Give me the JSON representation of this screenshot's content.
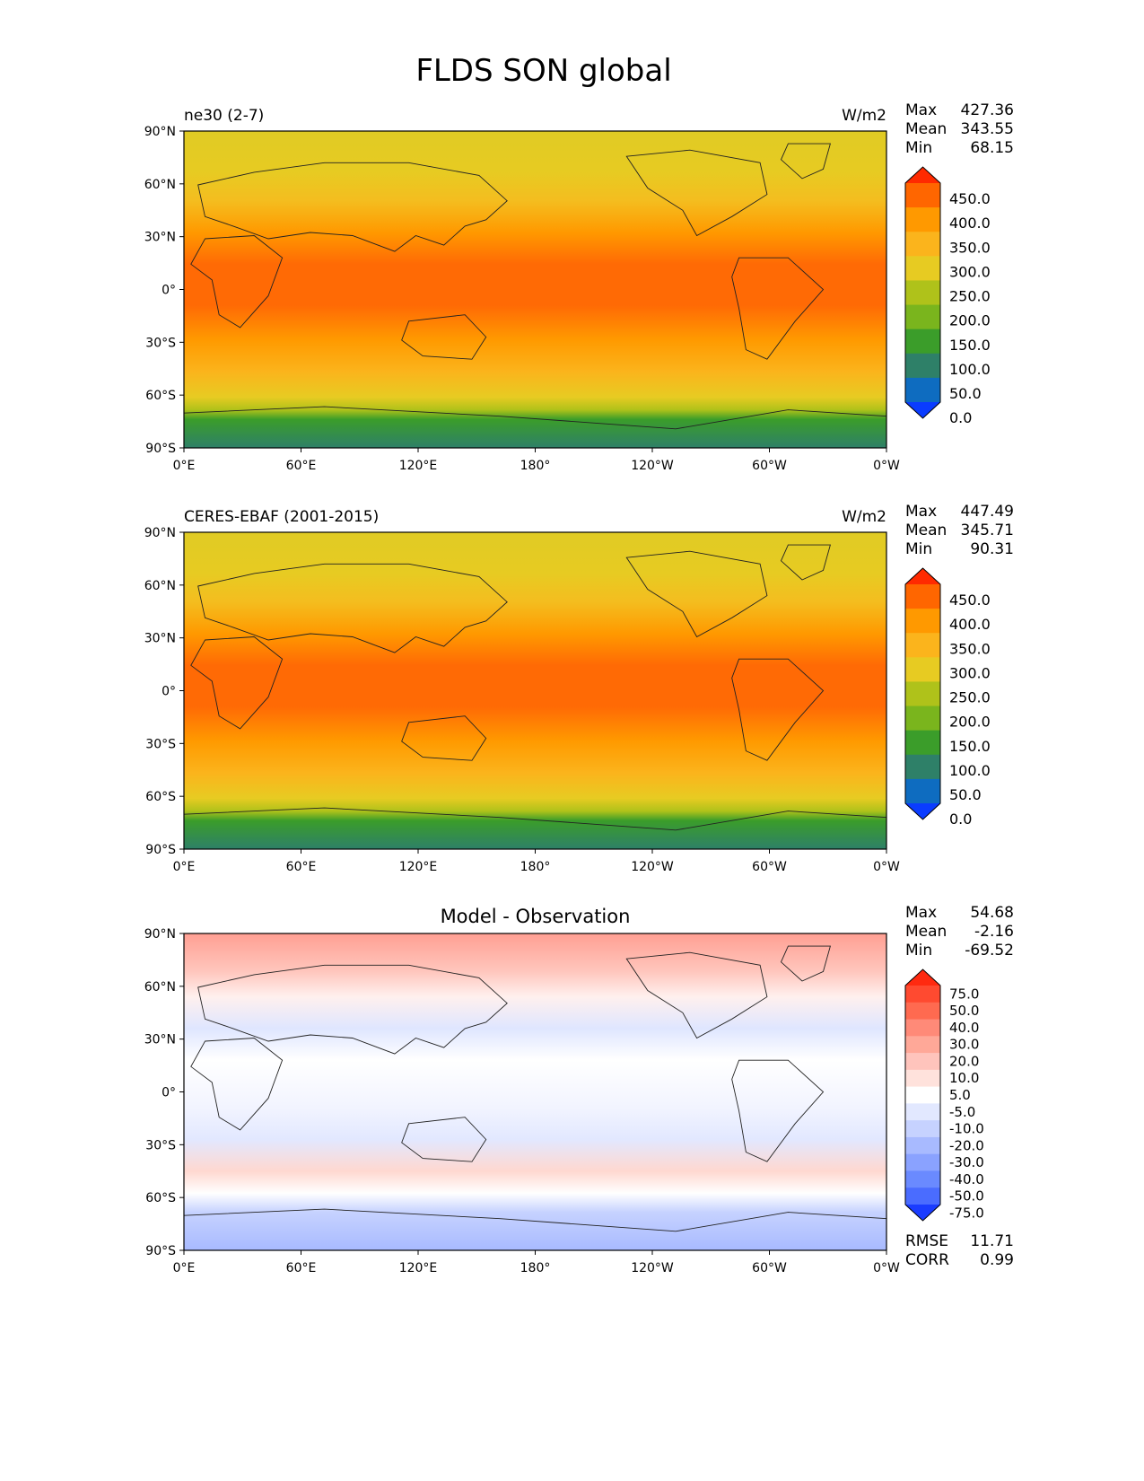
{
  "figure_title": "FLDS SON global",
  "x_ticks": [
    "0°E",
    "60°E",
    "120°E",
    "180°",
    "120°W",
    "60°W",
    "0°W"
  ],
  "y_ticks": [
    "90°N",
    "60°N",
    "30°N",
    "0°",
    "30°S",
    "60°S",
    "90°S"
  ],
  "panels": [
    {
      "id": "model",
      "left_title": "ne30 (2-7)",
      "center_title": "",
      "units": "W/m2",
      "stats": [
        {
          "label": "Max",
          "value": "427.36"
        },
        {
          "label": "Mean",
          "value": "343.55"
        },
        {
          "label": "Min",
          "value": "68.15"
        }
      ],
      "colorbar": {
        "levels": [
          "450.0",
          "400.0",
          "350.0",
          "300.0",
          "250.0",
          "200.0",
          "150.0",
          "100.0",
          "50.0",
          "0.0"
        ],
        "colors": [
          "#ff2a00",
          "#ff6600",
          "#ff9900",
          "#fbb41c",
          "#e7cb22",
          "#afc21a",
          "#7ab51d",
          "#3b9d2a",
          "#2e8068",
          "#0e6cc0",
          "#0a3cff"
        ]
      },
      "footer_stats": []
    },
    {
      "id": "obs",
      "left_title": "CERES-EBAF (2001-2015)",
      "center_title": "",
      "units": "W/m2",
      "stats": [
        {
          "label": "Max",
          "value": "447.49"
        },
        {
          "label": "Mean",
          "value": "345.71"
        },
        {
          "label": "Min",
          "value": "90.31"
        }
      ],
      "colorbar": {
        "levels": [
          "450.0",
          "400.0",
          "350.0",
          "300.0",
          "250.0",
          "200.0",
          "150.0",
          "100.0",
          "50.0",
          "0.0"
        ],
        "colors": [
          "#ff2a00",
          "#ff6600",
          "#ff9900",
          "#fbb41c",
          "#e7cb22",
          "#afc21a",
          "#7ab51d",
          "#3b9d2a",
          "#2e8068",
          "#0e6cc0",
          "#0a3cff"
        ]
      },
      "footer_stats": []
    },
    {
      "id": "diff",
      "left_title": "",
      "center_title": "Model - Observation",
      "units": "",
      "stats": [
        {
          "label": "Max",
          "value": "54.68"
        },
        {
          "label": "Mean",
          "value": "-2.16"
        },
        {
          "label": "Min",
          "value": "-69.52"
        }
      ],
      "colorbar": {
        "levels": [
          "75.0",
          "50.0",
          "40.0",
          "30.0",
          "20.0",
          "10.0",
          "5.0",
          "-5.0",
          "-10.0",
          "-20.0",
          "-30.0",
          "-40.0",
          "-50.0",
          "-75.0"
        ],
        "colors": [
          "#ff2a10",
          "#ff4a30",
          "#ff6a50",
          "#ff8a78",
          "#ffa898",
          "#ffc4bc",
          "#ffe2dc",
          "#ffffff",
          "#e2e8ff",
          "#c6d2ff",
          "#a8baff",
          "#8aa2ff",
          "#6a8aff",
          "#4a6cff",
          "#1a3cff"
        ]
      },
      "footer_stats": [
        {
          "label": "RMSE",
          "value": "11.71"
        },
        {
          "label": "CORR",
          "value": "0.99"
        }
      ]
    }
  ]
}
